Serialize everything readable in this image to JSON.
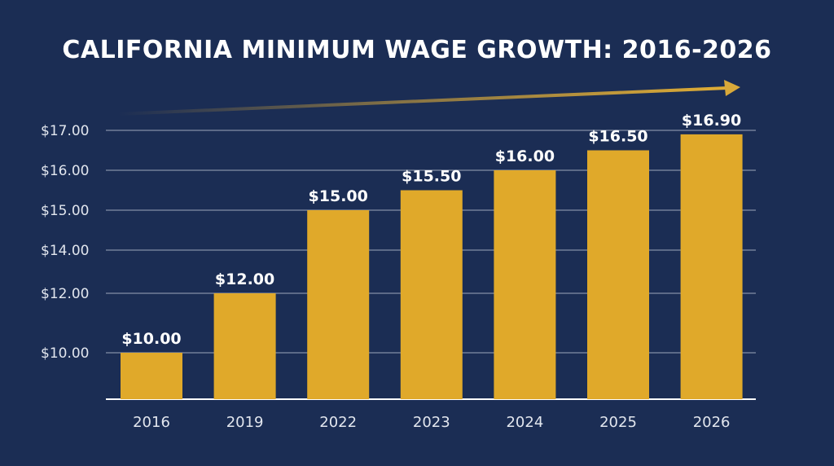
{
  "colors": {
    "background": "#1b2d54",
    "bar": "#e0a92a",
    "gridline": "#c8cfdc",
    "trend_arrow": "#d9a93a"
  },
  "chart_data": {
    "type": "bar",
    "title": "CALIFORNIA MINIMUM WAGE GROWTH: 2016-2026",
    "xlabel": "",
    "ylabel": "",
    "categories": [
      "2016",
      "2019",
      "2022",
      "2023",
      "2024",
      "2025",
      "2026"
    ],
    "values": [
      10.0,
      12.0,
      15.0,
      15.5,
      16.0,
      16.5,
      16.9
    ],
    "data_labels": [
      "$10.00",
      "$12.00",
      "$15.00",
      "$15.50",
      "$16.00",
      "$16.50",
      "$16.90"
    ],
    "y_ticks": [
      10.0,
      12.0,
      14.0,
      15.0,
      16.0,
      17.0
    ],
    "y_tick_labels": [
      "$10.00",
      "$12.00",
      "$14.00",
      "$15.00",
      "$16.00",
      "$17.00"
    ],
    "grid": true,
    "legend": "none",
    "trend_arrow": true
  }
}
